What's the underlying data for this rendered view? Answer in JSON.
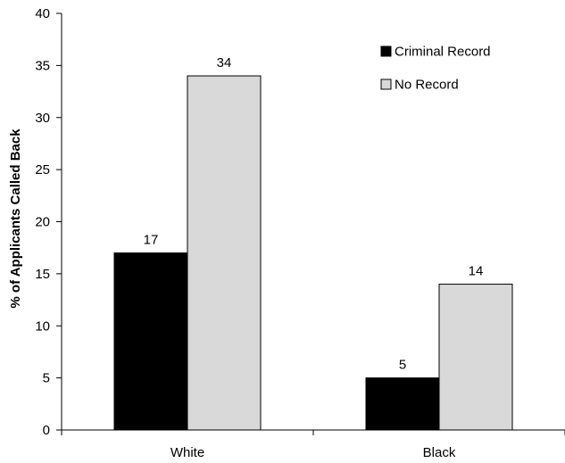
{
  "chart_data": {
    "type": "bar",
    "categories": [
      "White",
      "Black"
    ],
    "series": [
      {
        "name": "Criminal Record",
        "values": [
          17,
          5
        ],
        "color": "#000000"
      },
      {
        "name": "No Record",
        "values": [
          34,
          14
        ],
        "color": "#d9d9d9"
      }
    ],
    "xlabel": "",
    "ylabel": "% of Applicants Called Back",
    "ylim": [
      0,
      40
    ],
    "yticks": [
      0,
      5,
      10,
      15,
      20,
      25,
      30,
      35,
      40
    ],
    "grid": false,
    "legend_position": "top-right"
  }
}
